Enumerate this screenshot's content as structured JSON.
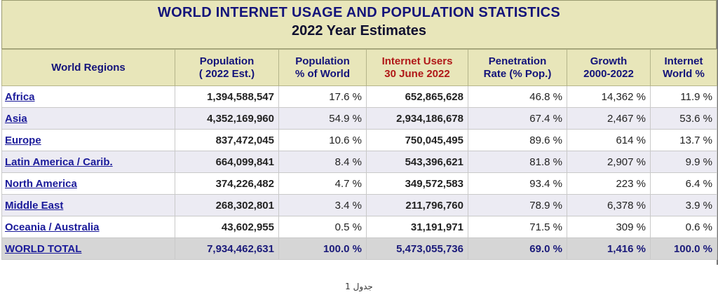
{
  "title": {
    "line1": "WORLD INTERNET USAGE AND POPULATION STATISTICS",
    "line2": "2022 Year Estimates"
  },
  "headers": [
    {
      "l1": "World Regions",
      "l2": ""
    },
    {
      "l1": "Population",
      "l2": "( 2022 Est.)"
    },
    {
      "l1": "Population",
      "l2": "% of World"
    },
    {
      "l1": "Internet Users",
      "l2": "30 June 2022"
    },
    {
      "l1": "Penetration",
      "l2": "Rate (% Pop.)"
    },
    {
      "l1": "Growth",
      "l2": "2000-2022"
    },
    {
      "l1": "Internet",
      "l2": "World %"
    }
  ],
  "rows": [
    {
      "region": "Africa",
      "population": "1,394,588,547",
      "pct_world": "17.6 %",
      "users": "652,865,628",
      "penetration": "46.8 %",
      "growth": "14,362 %",
      "internet_world": "11.9 %"
    },
    {
      "region": "Asia",
      "population": "4,352,169,960",
      "pct_world": "54.9 %",
      "users": "2,934,186,678",
      "penetration": "67.4 %",
      "growth": "2,467 %",
      "internet_world": "53.6 %"
    },
    {
      "region": "Europe",
      "population": "837,472,045",
      "pct_world": "10.6 %",
      "users": "750,045,495",
      "penetration": "89.6 %",
      "growth": "614 %",
      "internet_world": "13.7 %"
    },
    {
      "region": "Latin America / Carib.",
      "population": "664,099,841",
      "pct_world": "8.4 %",
      "users": "543,396,621",
      "penetration": "81.8 %",
      "growth": "2,907 %",
      "internet_world": "9.9 %"
    },
    {
      "region": "North America",
      "population": "374,226,482",
      "pct_world": "4.7 %",
      "users": "349,572,583",
      "penetration": "93.4 %",
      "growth": "223 %",
      "internet_world": "6.4 %"
    },
    {
      "region": "Middle East",
      "population": "268,302,801",
      "pct_world": "3.4 %",
      "users": "211,796,760",
      "penetration": "78.9 %",
      "growth": "6,378 %",
      "internet_world": "3.9 %"
    },
    {
      "region": "Oceania / Australia",
      "population": "43,602,955",
      "pct_world": "0.5 %",
      "users": "31,191,971",
      "penetration": "71.5 %",
      "growth": "309 %",
      "internet_world": "0.6 %"
    }
  ],
  "total": {
    "region": "WORLD TOTAL",
    "population": "7,934,462,631",
    "pct_world": "100.0 %",
    "users": "5,473,055,736",
    "penetration": "69.0 %",
    "growth": "1,416 %",
    "internet_world": "100.0 %"
  },
  "caption": "جدول 1"
}
